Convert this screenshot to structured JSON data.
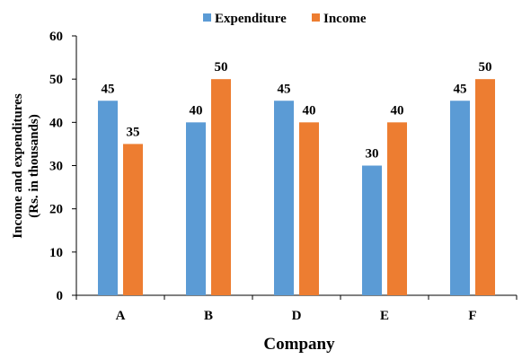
{
  "chart_data": {
    "type": "bar",
    "categories": [
      "A",
      "B",
      "D",
      "E",
      "F"
    ],
    "series": [
      {
        "name": "Expenditure",
        "values": [
          45,
          40,
          45,
          30,
          45
        ],
        "color": "#5B9BD5"
      },
      {
        "name": "Income",
        "values": [
          35,
          50,
          40,
          40,
          50
        ],
        "color": "#ED7D31"
      }
    ],
    "xlabel": "Company",
    "ylabel_line1": "Income and expenditures",
    "ylabel_line2": "(Rs. in thousands)",
    "ylim": [
      0,
      60
    ],
    "yticks": [
      0,
      10,
      20,
      30,
      40,
      50,
      60
    ],
    "grid": false,
    "legend_position": "top"
  }
}
